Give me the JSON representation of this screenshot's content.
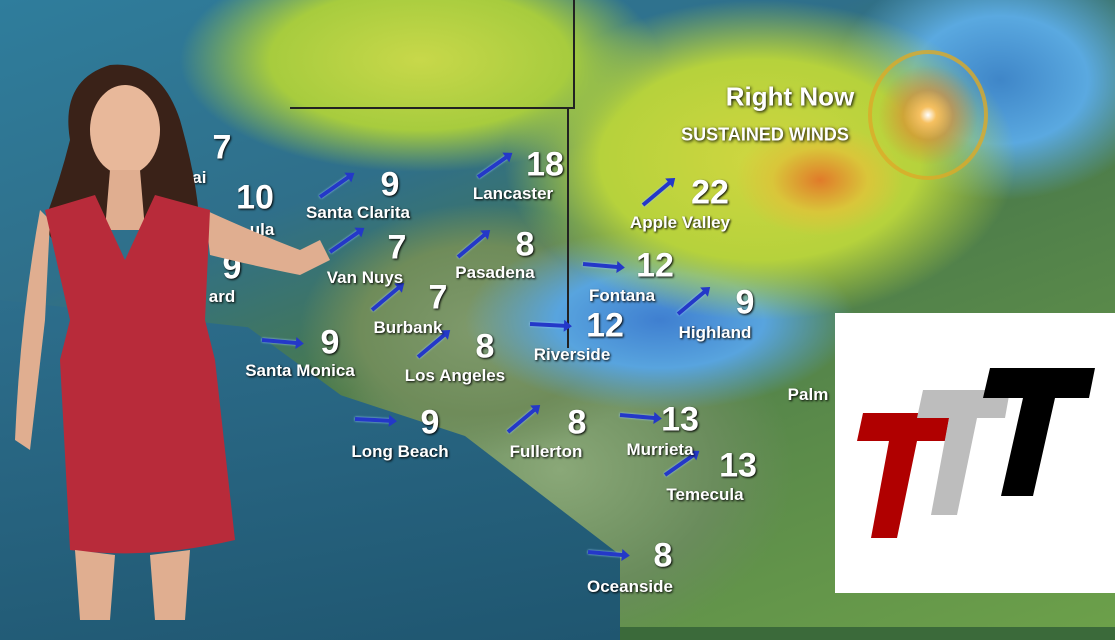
{
  "header": {
    "title": "Right Now",
    "subtitle": "SUSTAINED WINDS"
  },
  "stations": [
    {
      "name": "Santa Clarita",
      "speed": "9"
    },
    {
      "name": "Van Nuys",
      "speed": "7"
    },
    {
      "name": "Burbank",
      "speed": "7"
    },
    {
      "name": "Pasadena",
      "speed": "8"
    },
    {
      "name": "Lancaster",
      "speed": "18"
    },
    {
      "name": "Apple Valley",
      "speed": "22"
    },
    {
      "name": "Fontana",
      "speed": "12"
    },
    {
      "name": "Riverside",
      "speed": "12"
    },
    {
      "name": "Highland",
      "speed": "9"
    },
    {
      "name": "Santa Monica",
      "speed": "9"
    },
    {
      "name": "Los Angeles",
      "speed": "8"
    },
    {
      "name": "Long Beach",
      "speed": "9"
    },
    {
      "name": "Fullerton",
      "speed": "8"
    },
    {
      "name": "Murrieta",
      "speed": "13"
    },
    {
      "name": "Temecula",
      "speed": "13"
    },
    {
      "name": "Oceanside",
      "speed": "8"
    }
  ],
  "partial_stations": [
    {
      "name": "jai",
      "speed": "7"
    },
    {
      "name": "ula",
      "speed": "10"
    },
    {
      "name": "ard",
      "speed": "9"
    },
    {
      "name": "Palm",
      "speed": ""
    }
  ],
  "colors": {
    "arrow": "#2438c8",
    "logo_red": "#b00000",
    "logo_gray": "#bdbdbd",
    "logo_black": "#000000"
  },
  "logo": {
    "text": "TTT"
  }
}
